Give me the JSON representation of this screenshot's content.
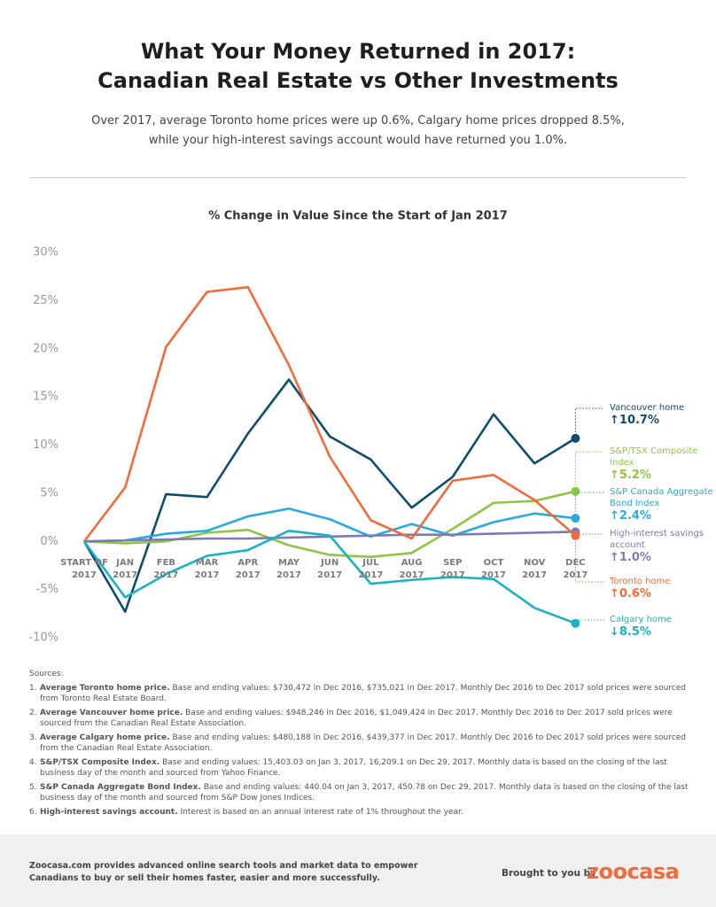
{
  "header": {
    "title_lines": [
      "What Your Money Returned in 2017:",
      "Canadian Real Estate vs Other Investments"
    ],
    "subtitle_lines": [
      "Over 2017, average Toronto home prices were up 0.6%, Calgary home prices dropped 8.5%,",
      "while your high-interest savings account would have returned you 1.0%."
    ]
  },
  "chart_data": {
    "type": "line",
    "title": "% Change in Value Since the Start of Jan 2017",
    "categories": [
      "START OF 2017",
      "JAN 2017",
      "FEB 2017",
      "MAR 2017",
      "APR 2017",
      "MAY 2017",
      "JUN 2017",
      "JUL 2017",
      "AUG 2017",
      "SEP 2017",
      "OCT 2017",
      "NOV 2017",
      "DEC 2017"
    ],
    "ylim": [
      -10,
      30
    ],
    "yticks": [
      {
        "value": -10,
        "label": "-10%"
      },
      {
        "value": -5,
        "label": "-5%"
      },
      {
        "value": 0,
        "label": "0%"
      },
      {
        "value": 5,
        "label": "5%"
      },
      {
        "value": 10,
        "label": "10%"
      },
      {
        "value": 15,
        "label": "15%"
      },
      {
        "value": 20,
        "label": "20%"
      },
      {
        "value": 25,
        "label": "25%"
      },
      {
        "value": 30,
        "label": "30%"
      }
    ],
    "grid": false,
    "series": [
      {
        "name": "Vancouver home",
        "color": "#0f4d70",
        "values": [
          0,
          -7.3,
          4.9,
          4.6,
          11.2,
          16.8,
          10.9,
          8.5,
          3.5,
          6.7,
          13.2,
          8.1,
          10.7
        ],
        "value_labels": [
          null,
          null,
          null,
          null,
          null,
          null,
          null,
          null,
          null,
          null,
          null,
          null,
          "↑10.7%"
        ]
      },
      {
        "name": "S&P/TSX Composite Index",
        "color": "#8dc63f",
        "values": [
          0,
          -0.2,
          0.0,
          0.9,
          1.2,
          -0.4,
          -1.4,
          -1.6,
          -1.2,
          1.3,
          4.0,
          4.2,
          5.2
        ],
        "value_labels": [
          null,
          null,
          null,
          null,
          null,
          null,
          null,
          null,
          null,
          null,
          null,
          null,
          "↑5.2%"
        ]
      },
      {
        "name": "S&P Canada Aggregate Bond Index",
        "color": "#27aae1",
        "values": [
          0,
          0.1,
          0.8,
          1.1,
          2.6,
          3.4,
          2.3,
          0.5,
          1.8,
          0.6,
          2.0,
          2.9,
          2.4
        ],
        "value_labels": [
          null,
          null,
          null,
          null,
          null,
          null,
          null,
          null,
          null,
          null,
          null,
          null,
          "↑2.4%"
        ]
      },
      {
        "name": "High-interest savings account",
        "color": "#7d7ab4",
        "values": [
          0,
          0.1,
          0.2,
          0.3,
          0.3,
          0.4,
          0.5,
          0.6,
          0.7,
          0.7,
          0.8,
          0.9,
          1.0
        ],
        "value_labels": [
          null,
          null,
          null,
          null,
          null,
          null,
          null,
          null,
          null,
          null,
          null,
          null,
          "↑1.0%"
        ]
      },
      {
        "name": "Toronto home",
        "color": "#f26b3a",
        "values": [
          0,
          5.6,
          20.2,
          25.9,
          26.4,
          18.3,
          8.8,
          2.2,
          0.3,
          6.3,
          6.9,
          4.3,
          0.6
        ],
        "value_labels": [
          null,
          null,
          null,
          null,
          null,
          null,
          null,
          null,
          null,
          null,
          null,
          null,
          "↑0.6%"
        ]
      },
      {
        "name": "Calgary home",
        "color": "#19b3c4",
        "values": [
          0,
          -5.8,
          -3.4,
          -1.5,
          -0.9,
          1.1,
          0.6,
          -4.4,
          -4.0,
          -3.7,
          -3.9,
          -6.9,
          -8.5
        ],
        "value_labels": [
          null,
          null,
          null,
          null,
          null,
          null,
          null,
          null,
          null,
          null,
          null,
          null,
          "↓8.5%"
        ]
      }
    ]
  },
  "sources": {
    "heading": "Sources:",
    "items": [
      {
        "number": "1.",
        "title": "Average Toronto home price.",
        "text": "Base and ending values: $730,472 in Dec 2016, $735,021 in Dec 2017. Monthly Dec 2016 to Dec 2017 sold prices were sourced from Toronto Real Estate Board."
      },
      {
        "number": "2.",
        "title": "Average Vancouver home price.",
        "text": "Base and ending values: $948,246 in Dec 2016, $1,049,424 in Dec 2017. Monthly Dec 2016 to Dec 2017 sold prices were sourced from the Canadian Real Estate Association."
      },
      {
        "number": "3.",
        "title": "Average Calgary home price.",
        "text": "Base and ending values: $480,188 in Dec 2016, $439,377 in Dec 2017. Monthly Dec 2016 to Dec 2017 sold prices were sourced from the Canadian Real Estate Association."
      },
      {
        "number": "4.",
        "title": "S&P/TSX Composite Index.",
        "text": "Base and ending values: 15,403.03 on Jan 3, 2017, 16,209.1 on Dec 29, 2017. Monthly data is based on the closing of the last business day of the month and sourced from Yahoo Finance."
      },
      {
        "number": "5.",
        "title": "S&P Canada Aggregate Bond Index.",
        "text": "Base and ending values: 440.04 on Jan 3, 2017, 450.78 on Dec 29, 2017. Monthly data is based on the closing of the last business day of the month and sourced from S&P Dow Jones Indices."
      },
      {
        "number": "6.",
        "title": "High-interest savings account.",
        "text": "Interest is based on an annual interest rate of 1% throughout the year."
      }
    ]
  },
  "footer": {
    "text_lines": [
      "Zoocasa.com provides advanced online search tools and market data to empower",
      "Canadians to buy or sell their homes faster, easier and more successfully."
    ],
    "brought_by": "Brought to you by",
    "brand": "zoocasa"
  }
}
